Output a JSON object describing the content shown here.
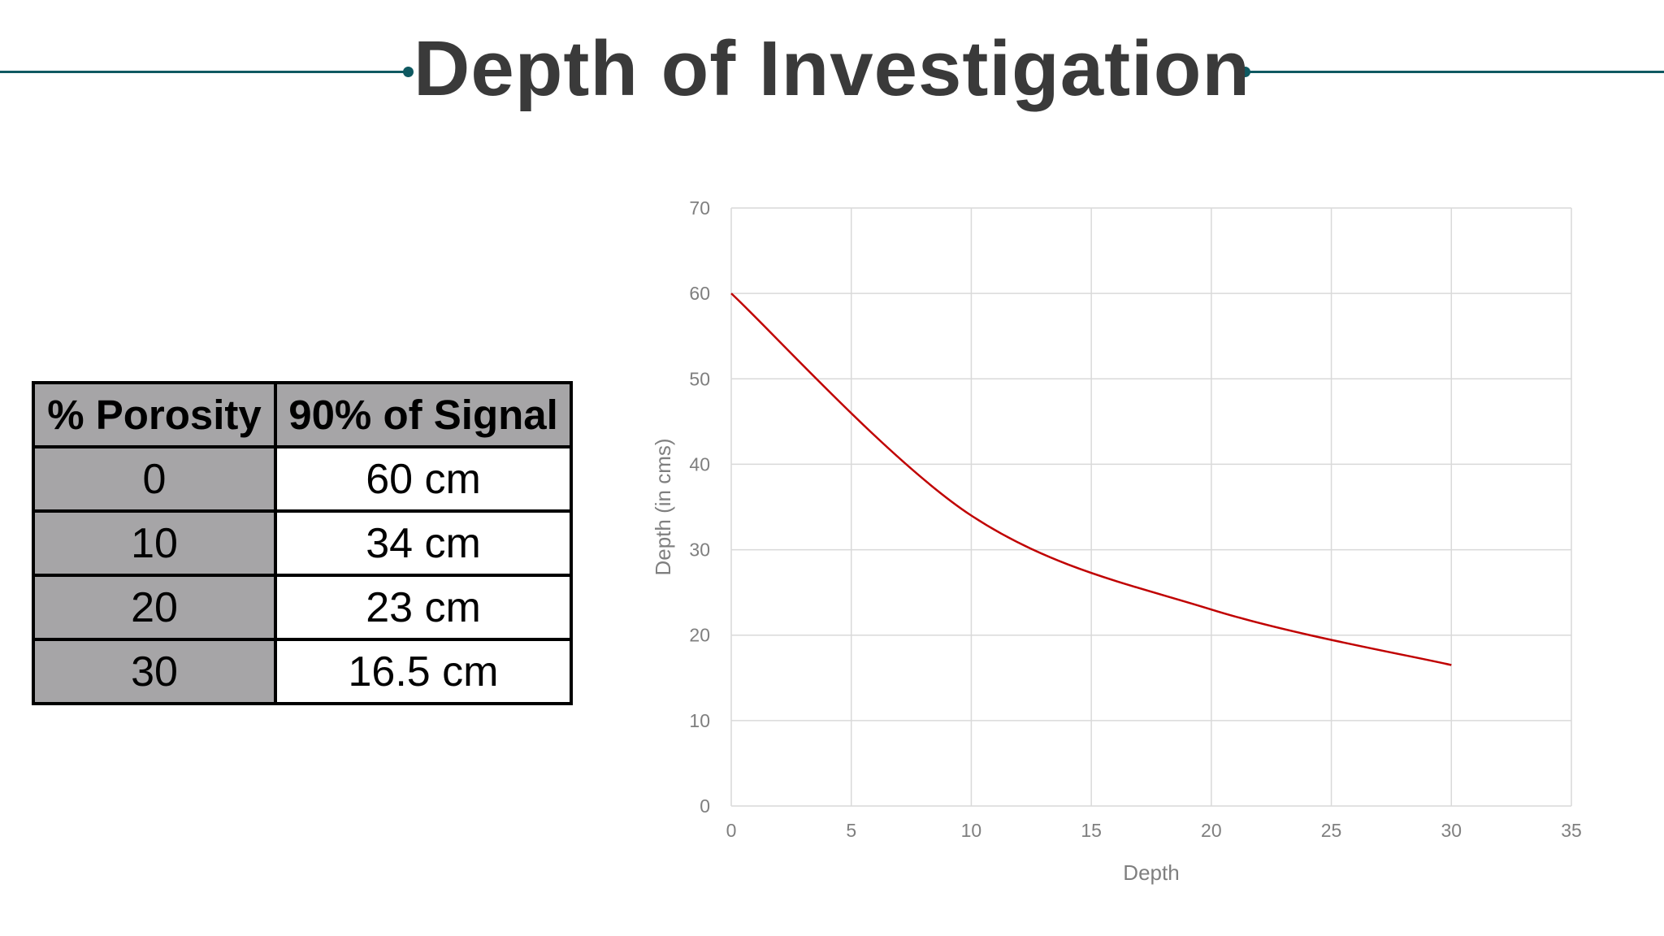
{
  "header": {
    "title": "Depth of Investigation"
  },
  "table": {
    "headers": [
      "% Porosity",
      "90% of Signal"
    ],
    "rows": [
      [
        "0",
        "60 cm"
      ],
      [
        "10",
        "34 cm"
      ],
      [
        "20",
        "23 cm"
      ],
      [
        "30",
        "16.5 cm"
      ]
    ]
  },
  "colors": {
    "accent": "#0f5961",
    "line": "#c00000",
    "table_header": "#a6a5a7"
  },
  "chart_data": {
    "type": "line",
    "title": "",
    "xlabel": "Depth",
    "ylabel": "Depth (in cms)",
    "xlim": [
      0,
      35
    ],
    "ylim": [
      0,
      70
    ],
    "x_ticks": [
      0,
      5,
      10,
      15,
      20,
      25,
      30,
      35
    ],
    "y_ticks": [
      0,
      10,
      20,
      30,
      40,
      50,
      60,
      70
    ],
    "grid": true,
    "legend": "none",
    "series": [
      {
        "x": [
          0,
          10,
          20,
          30
        ],
        "values": [
          60,
          34,
          23,
          16.5
        ]
      }
    ]
  }
}
